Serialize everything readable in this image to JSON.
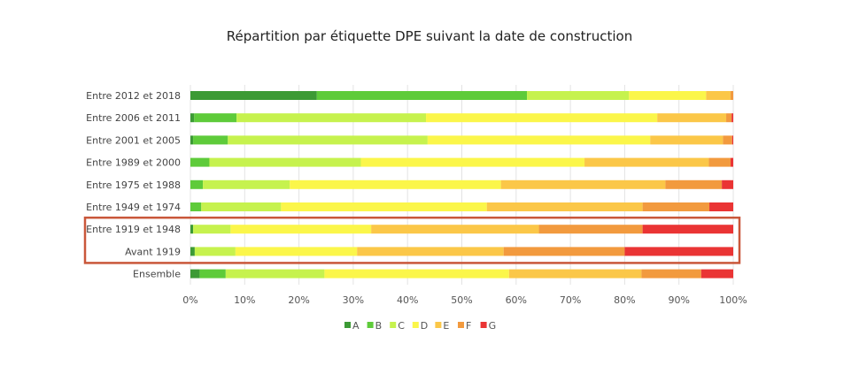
{
  "chart_data": {
    "type": "bar",
    "orientation": "horizontal",
    "stacked": "percent",
    "title": "Répartition par étiquette DPE suivant la date de construction",
    "categories": [
      "Entre 2012 et 2018",
      "Entre 2006 et 2011",
      "Entre 2001 et 2005",
      "Entre 1989 et 2000",
      "Entre 1975 et 1988",
      "Entre 1949 et 1974",
      "Entre 1919 et 1948",
      "Avant 1919",
      "Ensemble"
    ],
    "series": [
      {
        "name": "A",
        "color": "#3c9a35",
        "values": [
          23.3,
          0.7,
          0.5,
          0,
          0,
          0,
          0.5,
          0.8,
          1.7
        ]
      },
      {
        "name": "B",
        "color": "#5ecb3a",
        "values": [
          38.7,
          7.8,
          6.4,
          3.5,
          2.3,
          2.0,
          0,
          0,
          4.8
        ]
      },
      {
        "name": "C",
        "color": "#c6f24e",
        "values": [
          18.8,
          34.9,
          36.8,
          27.9,
          16.0,
          14.7,
          6.9,
          7.5,
          18.2
        ]
      },
      {
        "name": "D",
        "color": "#fbf64a",
        "values": [
          14.2,
          42.6,
          41.0,
          41.2,
          38.9,
          37.9,
          25.9,
          22.4,
          34.0
        ]
      },
      {
        "name": "E",
        "color": "#fbc748",
        "values": [
          4.5,
          12.7,
          13.4,
          22.9,
          30.3,
          28.7,
          30.9,
          27.0,
          24.4
        ]
      },
      {
        "name": "F",
        "color": "#f29a3e",
        "values": [
          0.5,
          1.0,
          1.7,
          4.0,
          10.4,
          12.3,
          19.1,
          22.3,
          11.0
        ]
      },
      {
        "name": "G",
        "color": "#ea3434",
        "values": [
          0,
          0.3,
          0.2,
          0.5,
          2.1,
          4.4,
          16.7,
          20.0,
          5.9
        ]
      }
    ],
    "xticks": [
      "0%",
      "10%",
      "20%",
      "30%",
      "40%",
      "50%",
      "60%",
      "70%",
      "80%",
      "90%",
      "100%"
    ],
    "xlim": [
      0,
      100
    ],
    "grid": "vertical",
    "legend": "bottom",
    "highlight": {
      "categories": [
        "Entre 1919 et 1948",
        "Avant 1919"
      ],
      "color": "#c9573a"
    }
  }
}
